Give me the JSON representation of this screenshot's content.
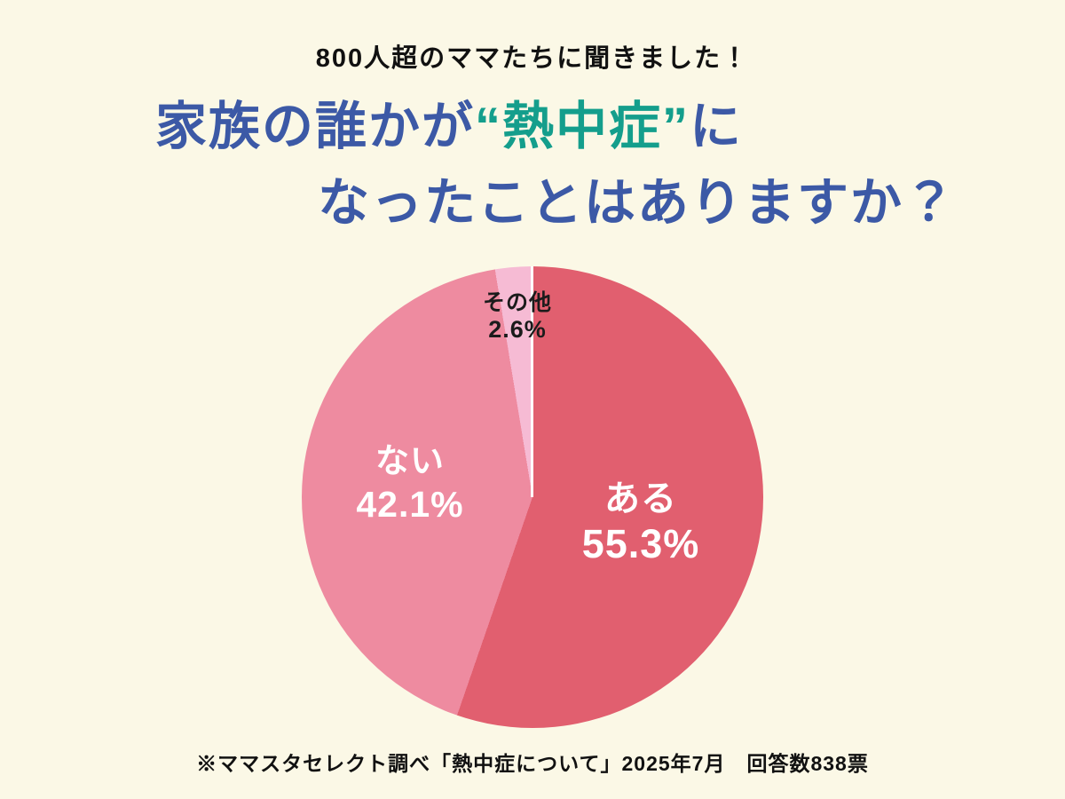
{
  "header": {
    "subtitle": "800人超のママたちに聞きました！",
    "title": {
      "line1_prefix": "家族の誰かが",
      "highlight": "“熱中症”",
      "line1_suffix": "に",
      "line2": "なったことはありますか？"
    }
  },
  "footer": {
    "note": "※ママスタセレクト調べ「熱中症について」2025年7月　回答数838票"
  },
  "colors": {
    "background": "#FBF8E6",
    "title_blue": "#3C59A6",
    "highlight_teal": "#149E8C",
    "slice_aru": "#E15F6F",
    "slice_nai": "#EE8BA0",
    "slice_sonota": "#F6BBD4",
    "label_white": "#FFFFFF",
    "label_black": "#1B1B1B"
  },
  "chart_data": {
    "type": "pie",
    "title": "家族の誰かが“熱中症”になったことはありますか？",
    "unit": "%",
    "start_angle_deg": 0,
    "direction": "clockwise",
    "slices": [
      {
        "label": "ある",
        "value": 55.3,
        "display": "55.3%",
        "color": "#E15F6F",
        "text_color": "#FFFFFF"
      },
      {
        "label": "ない",
        "value": 42.1,
        "display": "42.1%",
        "color": "#EE8BA0",
        "text_color": "#FFFFFF"
      },
      {
        "label": "その他",
        "value": 2.6,
        "display": "2.6%",
        "color": "#F6BBD4",
        "text_color": "#1B1B1B"
      }
    ],
    "total_responses": 838,
    "legend_position": "none",
    "source_note": "※ママスタセレクト調べ「熱中症について」2025年7月　回答数838票"
  }
}
